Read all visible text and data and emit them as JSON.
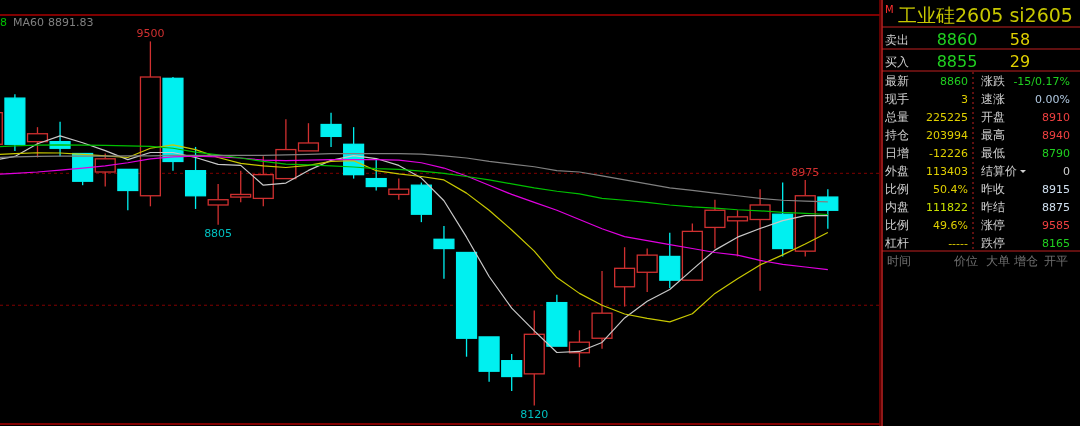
{
  "chart_data": [
    {
      "type": "candlestick",
      "categories": [
        null,
        null,
        null,
        null,
        null,
        null,
        null,
        null,
        null,
        null,
        null,
        null,
        null,
        null,
        null,
        null,
        null,
        null,
        null,
        null,
        null,
        null,
        null,
        null,
        null,
        null,
        null,
        null,
        null,
        null,
        null,
        null,
        null,
        null,
        null,
        null,
        null,
        null
      ],
      "ohlc": [
        [
          9110,
          9230,
          9110,
          9230
        ],
        [
          9285,
          9300,
          9085,
          9110
        ],
        [
          9120,
          9175,
          9060,
          9150
        ],
        [
          9120,
          9195,
          9065,
          9095
        ],
        [
          9075,
          9075,
          8955,
          8970
        ],
        [
          9005,
          9075,
          8950,
          9055
        ],
        [
          9015,
          9015,
          8860,
          8935
        ],
        [
          8915,
          9500,
          8875,
          9365
        ],
        [
          9360,
          9365,
          9010,
          9045
        ],
        [
          9010,
          9100,
          8865,
          8915
        ],
        [
          8880,
          8960,
          8805,
          8900
        ],
        [
          8910,
          9010,
          8890,
          8920
        ],
        [
          8905,
          9065,
          8875,
          8995
        ],
        [
          8980,
          9205,
          8980,
          9090
        ],
        [
          9085,
          9190,
          9085,
          9115
        ],
        [
          9185,
          9230,
          9100,
          9140
        ],
        [
          9110,
          9175,
          8980,
          8995
        ],
        [
          8980,
          9055,
          8935,
          8950
        ],
        [
          8920,
          8980,
          8900,
          8940
        ],
        [
          8955,
          8965,
          8815,
          8845
        ],
        [
          8750,
          8800,
          8600,
          8715
        ],
        [
          8700,
          8700,
          8305,
          8375
        ],
        [
          8380,
          8380,
          8210,
          8250
        ],
        [
          8290,
          8315,
          8175,
          8230
        ],
        [
          8240,
          8480,
          8120,
          8390
        ],
        [
          8510,
          8540,
          8345,
          8345
        ],
        [
          8320,
          8405,
          8265,
          8360
        ],
        [
          8375,
          8630,
          8335,
          8470
        ],
        [
          8570,
          8720,
          8495,
          8640
        ],
        [
          8625,
          8715,
          8550,
          8690
        ],
        [
          8685,
          8775,
          8565,
          8595
        ],
        [
          8595,
          8810,
          8595,
          8780
        ],
        [
          8795,
          8900,
          8715,
          8860
        ],
        [
          8820,
          8860,
          8685,
          8835
        ],
        [
          8825,
          8940,
          8555,
          8880
        ],
        [
          8845,
          8965,
          8685,
          8715
        ],
        [
          8705,
          8975,
          8685,
          8915
        ],
        [
          8910,
          8940,
          8790,
          8860
        ]
      ],
      "colors": [
        "#d03030",
        "#00f0f0",
        "#d03030",
        "#00f0f0",
        "#00f0f0",
        "#d03030",
        "#00f0f0",
        "#d03030",
        "#00f0f0",
        "#00f0f0",
        "#d03030",
        "#d03030",
        "#d03030",
        "#d03030",
        "#d03030",
        "#00f0f0",
        "#00f0f0",
        "#00f0f0",
        "#d03030",
        "#00f0f0",
        "#00f0f0",
        "#00f0f0",
        "#00f0f0",
        "#00f0f0",
        "#d03030",
        "#00f0f0",
        "#d03030",
        "#d03030",
        "#d03030",
        "#d03030",
        "#00f0f0",
        "#d03030",
        "#d03030",
        "#d03030",
        "#d03030",
        "#00f0f0",
        "#d03030",
        "#00f0f0"
      ],
      "series": [
        {
          "type": "line",
          "color": "#c8c8c8",
          "values": [
            9049,
            9064,
            9112,
            9142,
            9116,
            9086,
            9052,
            9079,
            9079,
            9060,
            9034,
            9030,
            8955,
            8963,
            9011,
            9049,
            9067,
            9056,
            9030,
            8982,
            8896,
            8758,
            8609,
            8489,
            8403,
            8321,
            8325,
            8359,
            8452,
            8515,
            8560,
            8635,
            8709,
            8758,
            8791,
            8821,
            8840,
            8840
          ]
        },
        {
          "type": "line",
          "color": "#c8c800",
          "values": [
            9070,
            9075,
            9078,
            9077,
            9072,
            9066,
            9060,
            9095,
            9108,
            9090,
            9060,
            9038,
            9028,
            9022,
            9030,
            9045,
            9048,
            9010,
            8998,
            8988,
            8975,
            8925,
            8860,
            8785,
            8705,
            8605,
            8545,
            8500,
            8467,
            8450,
            8437,
            8468,
            8545,
            8600,
            8653,
            8691,
            8732,
            8776
          ]
        },
        {
          "type": "line",
          "color": "#e000e0",
          "values": [
            8995,
            9000,
            9005,
            9012,
            9020,
            9028,
            9040,
            9055,
            9062,
            9065,
            9062,
            9058,
            9050,
            9048,
            9050,
            9052,
            9052,
            9052,
            9050,
            9040,
            9020,
            8990,
            8955,
            8920,
            8890,
            8860,
            8825,
            8790,
            8760,
            8745,
            8730,
            8715,
            8700,
            8690,
            8670,
            8655,
            8645,
            8635
          ]
        },
        {
          "type": "line",
          "color": "#00c000",
          "values": [
            9100,
            9104,
            9107,
            9108,
            9107,
            9106,
            9104,
            9102,
            9095,
            9080,
            9070,
            9058,
            9045,
            9035,
            9032,
            9028,
            9024,
            9018,
            9015,
            9008,
            9000,
            8988,
            8975,
            8960,
            8945,
            8932,
            8922,
            8905,
            8898,
            8890,
            8880,
            8873,
            8868,
            8862,
            8858,
            8852,
            8848,
            8844
          ]
        },
        {
          "type": "line",
          "name": "MA60",
          "color": "#808080",
          "values": [
            9060,
            9062,
            9064,
            9065,
            9065,
            9065,
            9066,
            9066,
            9068,
            9068,
            9068,
            9068,
            9068,
            9070,
            9072,
            9075,
            9075,
            9075,
            9075,
            9073,
            9066,
            9058,
            9045,
            9035,
            9025,
            9010,
            9005,
            8990,
            8975,
            8960,
            8945,
            8935,
            8925,
            8915,
            8905,
            8898,
            8895,
            8892
          ]
        }
      ],
      "ylim": [
        8050,
        9600
      ],
      "yticks": [
        {
          "value": 9000,
          "label": null
        },
        {
          "value": 8500,
          "label": null
        }
      ],
      "grid": "y",
      "legend": "top left",
      "annotations": [
        {
          "text": "9500",
          "y": 9500
        },
        {
          "text": "8805",
          "y": 8805
        },
        {
          "text": "8120",
          "y": 8120
        },
        {
          "text": "8975",
          "y": 8975
        },
        "8",
        "8891.83"
      ]
    },
    {
      "type": "other",
      "title": "工业硅2605 si2605",
      "annotations": [
        "M",
        "卖出",
        "8860",
        "58",
        "买入",
        "8855",
        "29",
        "最新",
        "8860",
        "涨跌",
        "-15/0.17%",
        "现手",
        "3",
        "速涨",
        "0.00%",
        "总量",
        "225225",
        "开盘",
        "8910",
        "持仓",
        "203994",
        "最高",
        "8940",
        "日增",
        "-12226",
        "最低",
        "8790",
        "外盘",
        "113403",
        "结算价",
        "0",
        "比例",
        "50.4%",
        "昨收",
        "8915",
        "内盘",
        "111822",
        "昨结",
        "8875",
        "比例",
        "49.6%",
        "涨停",
        "9585",
        "杠杆",
        "-----",
        "跌停",
        "8165",
        "时间",
        "价位",
        "大单",
        "增仓",
        "开平"
      ]
    }
  ]
}
